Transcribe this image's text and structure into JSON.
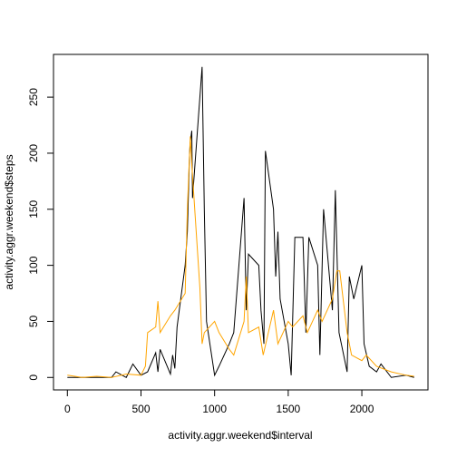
{
  "chart_data": {
    "type": "line",
    "xlabel": "activity.aggr.weekend$interval",
    "ylabel": "activity.aggr.weekend$steps",
    "xlim": [
      -94.2,
      2449.2
    ],
    "ylim": [
      -11.1,
      288.1
    ],
    "xticks": [
      0,
      500,
      1000,
      1500,
      2000
    ],
    "yticks": [
      0,
      50,
      100,
      150,
      200,
      250
    ],
    "series": [
      {
        "color": "#000000",
        "x": [
          0,
          100,
          200,
          300,
          330,
          400,
          430,
          445,
          500,
          545,
          600,
          615,
          630,
          700,
          715,
          730,
          745,
          800,
          815,
          830,
          835,
          845,
          850,
          900,
          915,
          930,
          945,
          1000,
          1030,
          1100,
          1130,
          1200,
          1215,
          1230,
          1300,
          1315,
          1335,
          1345,
          1400,
          1415,
          1430,
          1445,
          1500,
          1520,
          1545,
          1600,
          1620,
          1640,
          1700,
          1715,
          1740,
          1800,
          1820,
          1845,
          1900,
          1915,
          1945,
          2000,
          2015,
          2050,
          2100,
          2130,
          2200,
          2300,
          2355
        ],
        "values": [
          0,
          0,
          0,
          0,
          5,
          0,
          8,
          12,
          2,
          5,
          22,
          5,
          25,
          3,
          20,
          8,
          45,
          100,
          130,
          200,
          210,
          220,
          160,
          250,
          277,
          150,
          50,
          2,
          10,
          30,
          40,
          160,
          60,
          110,
          100,
          60,
          30,
          202,
          150,
          90,
          130,
          70,
          30,
          2,
          125,
          125,
          40,
          125,
          100,
          20,
          150,
          60,
          167,
          40,
          5,
          90,
          70,
          100,
          30,
          10,
          5,
          12,
          0,
          2,
          0
        ]
      },
      {
        "color": "#ffa500",
        "x": [
          0,
          100,
          200,
          300,
          400,
          500,
          530,
          545,
          600,
          615,
          630,
          700,
          730,
          800,
          815,
          830,
          835,
          845,
          850,
          900,
          915,
          930,
          1000,
          1030,
          1100,
          1130,
          1200,
          1215,
          1230,
          1300,
          1330,
          1400,
          1430,
          1500,
          1530,
          1600,
          1630,
          1700,
          1730,
          1800,
          1830,
          1850,
          1900,
          1930,
          2000,
          2030,
          2100,
          2200,
          2300,
          2355
        ],
        "values": [
          2,
          0,
          1,
          0,
          3,
          2,
          10,
          40,
          45,
          68,
          40,
          55,
          60,
          75,
          150,
          200,
          215,
          190,
          180,
          80,
          30,
          40,
          50,
          40,
          25,
          20,
          50,
          90,
          40,
          45,
          20,
          60,
          30,
          50,
          45,
          55,
          40,
          60,
          50,
          70,
          95,
          95,
          40,
          20,
          15,
          20,
          10,
          5,
          2,
          1
        ]
      }
    ]
  }
}
